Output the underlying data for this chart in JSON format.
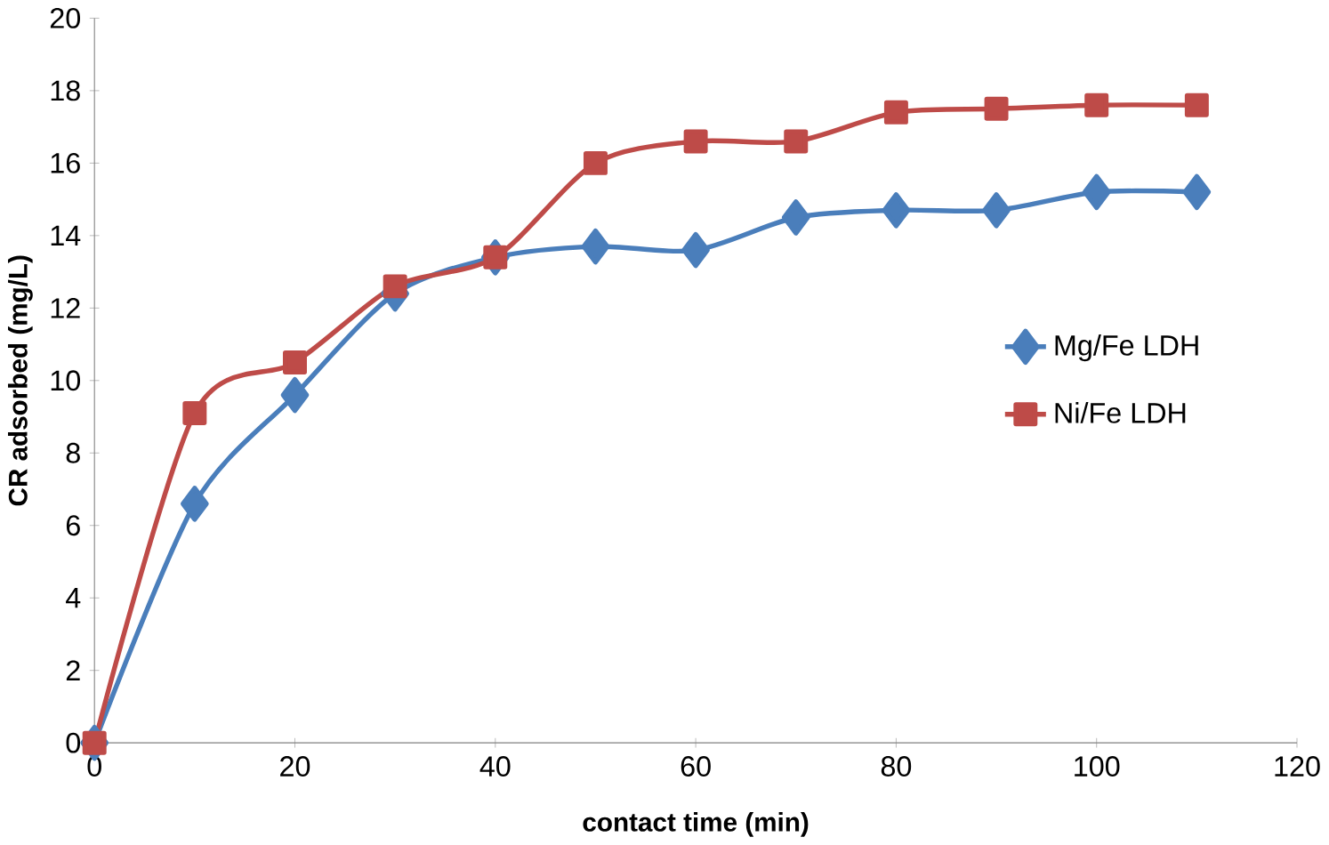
{
  "chart_data": {
    "type": "line",
    "xlabel": "contact time (min)",
    "ylabel": "CR adsorbed (mg/L)",
    "x": [
      0,
      10,
      20,
      30,
      40,
      50,
      60,
      70,
      80,
      90,
      100,
      110
    ],
    "series": [
      {
        "name": "Mg/Fe LDH",
        "color": "#4a7ebb",
        "marker": "diamond",
        "values": [
          0,
          6.6,
          9.6,
          12.4,
          13.4,
          13.7,
          13.6,
          14.5,
          14.7,
          14.7,
          15.2,
          15.2
        ]
      },
      {
        "name": "Ni/Fe LDH",
        "color": "#be4b48",
        "marker": "square",
        "values": [
          0,
          9.1,
          10.5,
          12.6,
          13.4,
          16.0,
          16.6,
          16.6,
          17.4,
          17.5,
          17.6,
          17.6
        ]
      }
    ],
    "xlim": [
      0,
      120
    ],
    "xticks": [
      0,
      20,
      40,
      60,
      80,
      100,
      120
    ],
    "ylim": [
      0,
      20
    ],
    "yticks": [
      0,
      2,
      4,
      6,
      8,
      10,
      12,
      14,
      16,
      18,
      20
    ],
    "grid": false,
    "legend": "right",
    "line_style": "solid"
  }
}
